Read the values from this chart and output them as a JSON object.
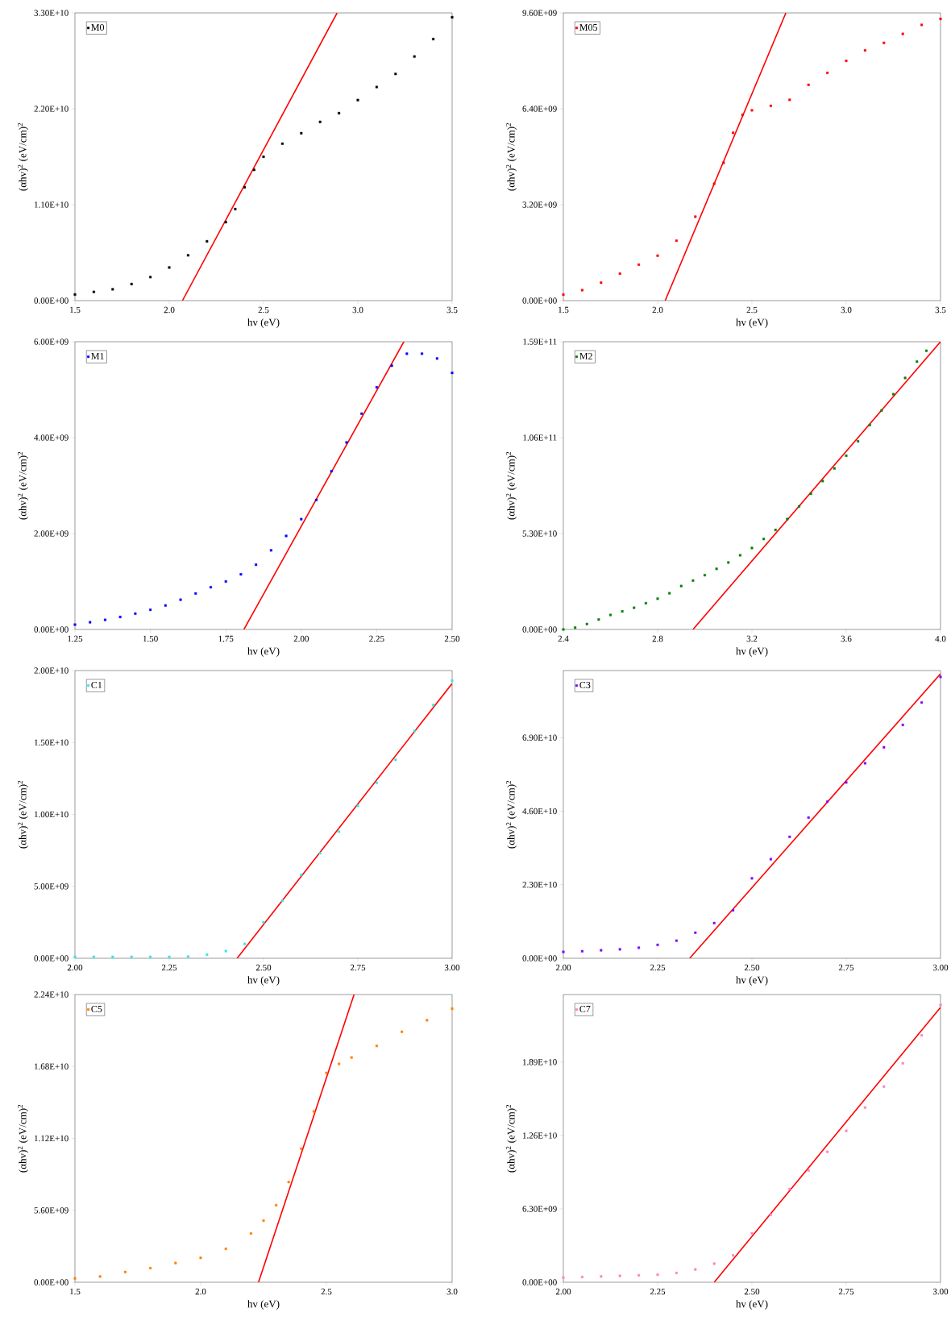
{
  "chart_data": [
    {
      "type": "scatter",
      "xlabel": "hv (eV)",
      "ylabel": "(αhv)$^{2}$ (eV/cm)$^{2}$",
      "legend": "top left",
      "marker": "square",
      "xlim": [
        1.5,
        3.5
      ],
      "ylim": [
        0,
        33000000000.0
      ],
      "xticks": [
        {
          "value": 1.5,
          "label": "1.5"
        },
        {
          "value": 2.0,
          "label": "2.0"
        },
        {
          "value": 2.5,
          "label": "2.5"
        },
        {
          "value": 3.0,
          "label": "3.0"
        },
        {
          "value": 3.5,
          "label": "3.5"
        }
      ],
      "yticks": [
        {
          "value": 0,
          "label": "0.00E+00"
        },
        {
          "value": 11000000000.0,
          "label": "1.10E+10"
        },
        {
          "value": 22000000000.0,
          "label": "2.20E+10"
        },
        {
          "value": 33000000000.0,
          "label": "3.30E+10"
        }
      ],
      "series": [
        {
          "name": "M0",
          "color": "#000000",
          "x": [
            1.5,
            1.6,
            1.7,
            1.8,
            1.9,
            2.0,
            2.1,
            2.2,
            2.3,
            2.35,
            2.4,
            2.45,
            2.5,
            2.6,
            2.7,
            2.8,
            2.9,
            3.0,
            3.1,
            3.2,
            3.3,
            3.4,
            3.5
          ],
          "values": [
            700000000.0,
            1000000000.0,
            1300000000.0,
            1900000000.0,
            2700000000.0,
            3800000000.0,
            5200000000.0,
            6800000000.0,
            9000000000.0,
            10500000000.0,
            13000000000.0,
            15000000000.0,
            16500000000.0,
            18000000000.0,
            19200000000.0,
            20500000000.0,
            21500000000.0,
            23000000000.0,
            24500000000.0,
            26000000000.0,
            28000000000.0,
            30000000000.0,
            32500000000.0
          ]
        },
        {
          "type": "line",
          "marker": "none",
          "color": "#ff0000",
          "x": [
            2.07,
            2.89
          ],
          "values": [
            0,
            33000000000.0
          ]
        }
      ]
    },
    {
      "type": "scatter",
      "xlabel": "hv (eV)",
      "ylabel": "(αhv)$^{2}$ (eV/cm)$^{2}$",
      "legend": "top left",
      "marker": "square",
      "xlim": [
        1.5,
        3.5
      ],
      "ylim": [
        0,
        9600000000.0
      ],
      "xticks": [
        {
          "value": 1.5,
          "label": "1.5"
        },
        {
          "value": 2.0,
          "label": "2.0"
        },
        {
          "value": 2.5,
          "label": "2.5"
        },
        {
          "value": 3.0,
          "label": "3.0"
        },
        {
          "value": 3.5,
          "label": "3.5"
        }
      ],
      "yticks": [
        {
          "value": 0,
          "label": "0.00E+00"
        },
        {
          "value": 3200000000.0,
          "label": "3.20E+09"
        },
        {
          "value": 6400000000.0,
          "label": "6.40E+09"
        },
        {
          "value": 9600000000.0,
          "label": "9.60E+09"
        }
      ],
      "series": [
        {
          "name": "M05",
          "color": "#ff0000",
          "x": [
            1.5,
            1.6,
            1.7,
            1.8,
            1.9,
            2.0,
            2.1,
            2.2,
            2.3,
            2.35,
            2.4,
            2.45,
            2.5,
            2.6,
            2.7,
            2.8,
            2.9,
            3.0,
            3.1,
            3.2,
            3.3,
            3.4,
            3.5
          ],
          "values": [
            200000000.0,
            350000000.0,
            600000000.0,
            900000000.0,
            1200000000.0,
            1500000000.0,
            2000000000.0,
            2800000000.0,
            3900000000.0,
            4600000000.0,
            5600000000.0,
            6200000000.0,
            6350000000.0,
            6500000000.0,
            6700000000.0,
            7200000000.0,
            7600000000.0,
            8000000000.0,
            8350000000.0,
            8600000000.0,
            8900000000.0,
            9200000000.0,
            9400000000.0
          ]
        },
        {
          "type": "line",
          "marker": "none",
          "color": "#ff0000",
          "x": [
            2.04,
            2.68
          ],
          "values": [
            0,
            9600000000.0
          ]
        }
      ]
    },
    {
      "type": "scatter",
      "xlabel": "hv (eV)",
      "ylabel": "(αhv)$^{2}$ (eV/cm)$^{2}$",
      "legend": "top left",
      "marker": "square",
      "xlim": [
        1.25,
        2.5
      ],
      "ylim": [
        0,
        6000000000.0
      ],
      "xticks": [
        {
          "value": 1.25,
          "label": "1.25"
        },
        {
          "value": 1.5,
          "label": "1.50"
        },
        {
          "value": 1.75,
          "label": "1.75"
        },
        {
          "value": 2.0,
          "label": "2.00"
        },
        {
          "value": 2.25,
          "label": "2.25"
        },
        {
          "value": 2.5,
          "label": "2.50"
        }
      ],
      "yticks": [
        {
          "value": 0,
          "label": "0.00E+00"
        },
        {
          "value": 2000000000.0,
          "label": "2.00E+09"
        },
        {
          "value": 4000000000.0,
          "label": "4.00E+09"
        },
        {
          "value": 6000000000.0,
          "label": "6.00E+09"
        }
      ],
      "series": [
        {
          "name": "M1",
          "color": "#0000ff",
          "x": [
            1.25,
            1.3,
            1.35,
            1.4,
            1.45,
            1.5,
            1.55,
            1.6,
            1.65,
            1.7,
            1.75,
            1.8,
            1.85,
            1.9,
            1.95,
            2.0,
            2.05,
            2.1,
            2.15,
            2.2,
            2.25,
            2.3,
            2.35,
            2.4,
            2.45,
            2.5
          ],
          "values": [
            100000000.0,
            150000000.0,
            200000000.0,
            260000000.0,
            330000000.0,
            410000000.0,
            500000000.0,
            620000000.0,
            750000000.0,
            880000000.0,
            1000000000.0,
            1150000000.0,
            1350000000.0,
            1650000000.0,
            1950000000.0,
            2300000000.0,
            2700000000.0,
            3300000000.0,
            3900000000.0,
            4500000000.0,
            5050000000.0,
            5500000000.0,
            5750000000.0,
            5750000000.0,
            5650000000.0,
            5350000000.0
          ]
        },
        {
          "type": "line",
          "marker": "none",
          "color": "#ff0000",
          "x": [
            1.81,
            2.34
          ],
          "values": [
            0,
            6000000000.0
          ]
        }
      ]
    },
    {
      "type": "scatter",
      "xlabel": "hv (eV)",
      "ylabel": "(αhv)$^{2}$ (eV/cm)$^{2}$",
      "legend": "top left",
      "marker": "square",
      "xlim": [
        2.4,
        4.0
      ],
      "ylim": [
        0,
        159000000000.0
      ],
      "xticks": [
        {
          "value": 2.4,
          "label": "2.4"
        },
        {
          "value": 2.8,
          "label": "2.8"
        },
        {
          "value": 3.2,
          "label": "3.2"
        },
        {
          "value": 3.6,
          "label": "3.6"
        },
        {
          "value": 4.0,
          "label": "4.0"
        }
      ],
      "yticks": [
        {
          "value": 0,
          "label": "0.00E+00"
        },
        {
          "value": 53000000000.0,
          "label": "5.30E+10"
        },
        {
          "value": 106000000000.0,
          "label": "1.06E+11"
        },
        {
          "value": 159000000000.0,
          "label": "1.59E+11"
        }
      ],
      "series": [
        {
          "name": "M2",
          "color": "#007f00",
          "x": [
            2.4,
            2.45,
            2.5,
            2.55,
            2.6,
            2.65,
            2.7,
            2.75,
            2.8,
            2.85,
            2.9,
            2.95,
            3.0,
            3.05,
            3.1,
            3.15,
            3.2,
            3.25,
            3.3,
            3.35,
            3.4,
            3.45,
            3.5,
            3.55,
            3.6,
            3.65,
            3.7,
            3.75,
            3.8,
            3.85,
            3.9,
            3.94
          ],
          "values": [
            0,
            1000000000.0,
            3000000000.0,
            5500000000.0,
            8000000000.0,
            10000000000.0,
            12000000000.0,
            14500000000.0,
            17000000000.0,
            20000000000.0,
            24000000000.0,
            27000000000.0,
            30000000000.0,
            33500000000.0,
            37000000000.0,
            41000000000.0,
            45000000000.0,
            50000000000.0,
            55000000000.0,
            61000000000.0,
            68000000000.0,
            75000000000.0,
            82000000000.0,
            89000000000.0,
            96000000000.0,
            104000000000.0,
            113000000000.0,
            121000000000.0,
            130000000000.0,
            139000000000.0,
            148000000000.0,
            154000000000.0
          ]
        },
        {
          "type": "line",
          "marker": "none",
          "color": "#ff0000",
          "x": [
            2.95,
            4.0
          ],
          "values": [
            0,
            159000000000.0
          ]
        }
      ]
    },
    {
      "type": "scatter",
      "xlabel": "hv (eV)",
      "ylabel": "(αhv)$^{2}$ (eV/cm)$^{2}$",
      "legend": "top left",
      "marker": "square",
      "xlim": [
        2.0,
        3.0
      ],
      "ylim": [
        0,
        20000000000.0
      ],
      "xticks": [
        {
          "value": 2.0,
          "label": "2.00"
        },
        {
          "value": 2.25,
          "label": "2.25"
        },
        {
          "value": 2.5,
          "label": "2.50"
        },
        {
          "value": 2.75,
          "label": "2.75"
        },
        {
          "value": 3.0,
          "label": "3.00"
        }
      ],
      "yticks": [
        {
          "value": 0,
          "label": "0.00E+00"
        },
        {
          "value": 5000000000.0,
          "label": "5.00E+09"
        },
        {
          "value": 10000000000.0,
          "label": "1.00E+10"
        },
        {
          "value": 15000000000.0,
          "label": "1.50E+10"
        },
        {
          "value": 20000000000.0,
          "label": "2.00E+10"
        }
      ],
      "series": [
        {
          "name": "C1",
          "color": "#33e6e6",
          "x": [
            2.0,
            2.05,
            2.1,
            2.15,
            2.2,
            2.25,
            2.3,
            2.35,
            2.4,
            2.45,
            2.5,
            2.55,
            2.6,
            2.65,
            2.7,
            2.75,
            2.8,
            2.85,
            2.9,
            2.95,
            3.0
          ],
          "values": [
            100000000.0,
            100000000.0,
            100000000.0,
            100000000.0,
            100000000.0,
            100000000.0,
            120000000.0,
            250000000.0,
            500000000.0,
            1000000000.0,
            2500000000.0,
            4000000000.0,
            5800000000.0,
            7300000000.0,
            8800000000.0,
            10600000000.0,
            12200000000.0,
            13800000000.0,
            15800000000.0,
            17600000000.0,
            19300000000.0
          ]
        },
        {
          "type": "line",
          "marker": "none",
          "color": "#ff0000",
          "x": [
            2.43,
            3.0
          ],
          "values": [
            0,
            19100000000.0
          ]
        }
      ]
    },
    {
      "type": "scatter",
      "xlabel": "hv (eV)",
      "ylabel": "(αhv)$^{2}$ (eV/cm)$^{2}$",
      "legend": "top left",
      "marker": "square",
      "xlim": [
        2.0,
        3.0
      ],
      "ylim": [
        0,
        90000000000.0
      ],
      "xticks": [
        {
          "value": 2.0,
          "label": "2.00"
        },
        {
          "value": 2.25,
          "label": "2.25"
        },
        {
          "value": 2.5,
          "label": "2.50"
        },
        {
          "value": 2.75,
          "label": "2.75"
        },
        {
          "value": 3.0,
          "label": "3.00"
        }
      ],
      "yticks": [
        {
          "value": 0,
          "label": "0.00E+00"
        },
        {
          "value": 23000000000.0,
          "label": "2.30E+10"
        },
        {
          "value": 46000000000.0,
          "label": "4.60E+10"
        },
        {
          "value": 69000000000.0,
          "label": "6.90E+10"
        }
      ],
      "series": [
        {
          "name": "C3",
          "color": "#8000ff",
          "x": [
            2.0,
            2.05,
            2.1,
            2.15,
            2.2,
            2.25,
            2.3,
            2.35,
            2.4,
            2.45,
            2.5,
            2.55,
            2.6,
            2.65,
            2.7,
            2.75,
            2.8,
            2.85,
            2.9,
            2.95,
            3.0
          ],
          "values": [
            2000000000.0,
            2200000000.0,
            2500000000.0,
            2800000000.0,
            3300000000.0,
            4200000000.0,
            5500000000.0,
            8000000000.0,
            11000000000.0,
            15000000000.0,
            25000000000.0,
            31000000000.0,
            38000000000.0,
            44000000000.0,
            49000000000.0,
            55000000000.0,
            61000000000.0,
            66000000000.0,
            73000000000.0,
            80000000000.0,
            88000000000.0
          ]
        },
        {
          "type": "line",
          "marker": "none",
          "color": "#ff0000",
          "x": [
            2.335,
            3.0
          ],
          "values": [
            0,
            89000000000.0
          ]
        }
      ]
    },
    {
      "type": "scatter",
      "xlabel": "hv (eV)",
      "ylabel": "(αhv)$^{2}$ (eV/cm)$^{2}$",
      "legend": "top left",
      "marker": "square",
      "xlim": [
        1.5,
        3.0
      ],
      "ylim": [
        0,
        22400000000.0
      ],
      "xticks": [
        {
          "value": 1.5,
          "label": "1.5"
        },
        {
          "value": 2.0,
          "label": "2.0"
        },
        {
          "value": 2.5,
          "label": "2.5"
        },
        {
          "value": 3.0,
          "label": "3.0"
        }
      ],
      "yticks": [
        {
          "value": 0,
          "label": "0.00E+00"
        },
        {
          "value": 5600000000.0,
          "label": "5.60E+09"
        },
        {
          "value": 11200000000.0,
          "label": "1.12E+10"
        },
        {
          "value": 16800000000.0,
          "label": "1.68E+10"
        },
        {
          "value": 22400000000.0,
          "label": "2.24E+10"
        }
      ],
      "series": [
        {
          "name": "C5",
          "color": "#ff7f00",
          "x": [
            1.5,
            1.6,
            1.7,
            1.8,
            1.9,
            2.0,
            2.1,
            2.2,
            2.25,
            2.3,
            2.35,
            2.4,
            2.45,
            2.5,
            2.55,
            2.6,
            2.7,
            2.8,
            2.9,
            3.0
          ],
          "values": [
            300000000.0,
            450000000.0,
            800000000.0,
            1100000000.0,
            1500000000.0,
            1900000000.0,
            2600000000.0,
            3800000000.0,
            4800000000.0,
            6000000000.0,
            7800000000.0,
            10400000000.0,
            13300000000.0,
            16300000000.0,
            17000000000.0,
            17500000000.0,
            18400000000.0,
            19500000000.0,
            20400000000.0,
            21300000000.0
          ]
        },
        {
          "type": "line",
          "marker": "none",
          "color": "#ff0000",
          "x": [
            2.23,
            2.61
          ],
          "values": [
            0,
            22400000000.0
          ]
        }
      ]
    },
    {
      "type": "scatter",
      "xlabel": "hv (eV)",
      "ylabel": "(αhv)$^{2}$ (eV/cm)$^{2}$",
      "legend": "top left",
      "marker": "square",
      "xlim": [
        2.0,
        3.0
      ],
      "ylim": [
        0,
        24700000000.0
      ],
      "xticks": [
        {
          "value": 2.0,
          "label": "2.00"
        },
        {
          "value": 2.25,
          "label": "2.25"
        },
        {
          "value": 2.5,
          "label": "2.50"
        },
        {
          "value": 2.75,
          "label": "2.75"
        },
        {
          "value": 3.0,
          "label": "3.00"
        }
      ],
      "yticks": [
        {
          "value": 0,
          "label": "0.00E+00"
        },
        {
          "value": 6300000000.0,
          "label": "6.30E+09"
        },
        {
          "value": 12600000000.0,
          "label": "1.26E+10"
        },
        {
          "value": 18900000000.0,
          "label": "1.89E+10"
        }
      ],
      "series": [
        {
          "name": "C7",
          "color": "#ff80c0",
          "x": [
            2.0,
            2.05,
            2.1,
            2.15,
            2.2,
            2.25,
            2.3,
            2.35,
            2.4,
            2.45,
            2.5,
            2.55,
            2.6,
            2.65,
            2.7,
            2.75,
            2.8,
            2.85,
            2.9,
            2.95,
            3.0
          ],
          "values": [
            400000000.0,
            450000000.0,
            500000000.0,
            550000000.0,
            600000000.0,
            650000000.0,
            800000000.0,
            1100000000.0,
            1600000000.0,
            2300000000.0,
            4200000000.0,
            5800000000.0,
            8000000000.0,
            9600000000.0,
            11200000000.0,
            13000000000.0,
            15000000000.0,
            16800000000.0,
            18800000000.0,
            21200000000.0,
            23800000000.0
          ]
        },
        {
          "type": "line",
          "marker": "none",
          "color": "#ff0000",
          "x": [
            2.4,
            3.0
          ],
          "values": [
            0,
            23600000000.0
          ]
        }
      ]
    }
  ]
}
